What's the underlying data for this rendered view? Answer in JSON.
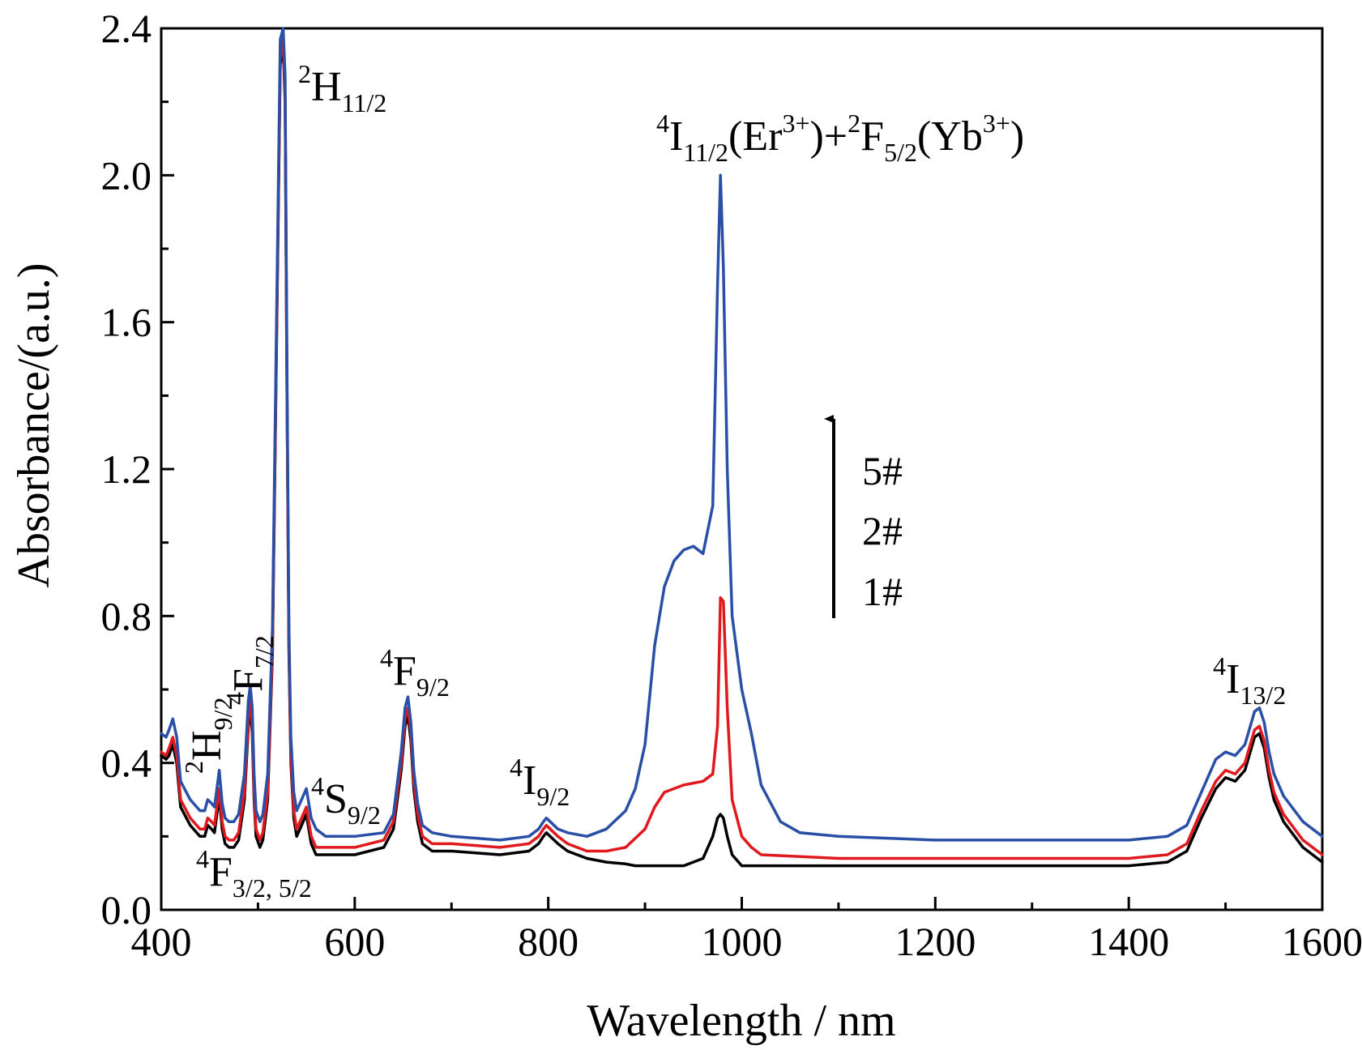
{
  "chart_data": {
    "type": "line",
    "xlabel": "Wavelength / nm",
    "ylabel": "Absorbance/(a.u.)",
    "xlim": [
      400,
      1600
    ],
    "ylim": [
      0.0,
      2.4
    ],
    "x_ticks": [
      {
        "value": 400,
        "label": "400"
      },
      {
        "value": 600,
        "label": "600"
      },
      {
        "value": 800,
        "label": "800"
      },
      {
        "value": 1000,
        "label": "1000"
      },
      {
        "value": 1200,
        "label": "1200"
      },
      {
        "value": 1400,
        "label": "1400"
      },
      {
        "value": 1600,
        "label": "1600"
      }
    ],
    "y_ticks": [
      {
        "value": 0.0,
        "label": "0.0"
      },
      {
        "value": 0.4,
        "label": "0.4"
      },
      {
        "value": 0.8,
        "label": "0.8"
      },
      {
        "value": 1.2,
        "label": "1.2"
      },
      {
        "value": 1.6,
        "label": "1.6"
      },
      {
        "value": 2.0,
        "label": "2.0"
      },
      {
        "value": 2.4,
        "label": "2.4"
      }
    ],
    "x_minor_step": 100,
    "y_minor_step": 0.2,
    "grid": false,
    "series": [
      {
        "name": "1#",
        "color": "#000000",
        "x": [
          400,
          405,
          408,
          412,
          416,
          420,
          430,
          440,
          445,
          448,
          452,
          455,
          458,
          460,
          463,
          466,
          470,
          475,
          480,
          486,
          490,
          492,
          494,
          496,
          498,
          502,
          505,
          510,
          515,
          520,
          523,
          526,
          528,
          530,
          532,
          534,
          537,
          540,
          545,
          550,
          555,
          560,
          570,
          600,
          630,
          640,
          648,
          652,
          655,
          658,
          661,
          665,
          670,
          680,
          700,
          750,
          780,
          790,
          795,
          798,
          802,
          810,
          820,
          840,
          860,
          880,
          890,
          900,
          920,
          940,
          960,
          970,
          975,
          978,
          981,
          985,
          990,
          1000,
          1020,
          1100,
          1200,
          1300,
          1400,
          1440,
          1460,
          1475,
          1490,
          1500,
          1510,
          1520,
          1530,
          1535,
          1540,
          1545,
          1550,
          1560,
          1580,
          1600
        ],
        "values": [
          0.42,
          0.41,
          0.42,
          0.45,
          0.4,
          0.28,
          0.23,
          0.2,
          0.2,
          0.23,
          0.22,
          0.21,
          0.27,
          0.31,
          0.22,
          0.18,
          0.17,
          0.17,
          0.19,
          0.3,
          0.5,
          0.55,
          0.48,
          0.3,
          0.2,
          0.17,
          0.19,
          0.3,
          0.7,
          1.7,
          2.3,
          2.35,
          2.2,
          1.4,
          0.7,
          0.4,
          0.25,
          0.2,
          0.23,
          0.26,
          0.18,
          0.15,
          0.15,
          0.15,
          0.17,
          0.22,
          0.38,
          0.5,
          0.53,
          0.46,
          0.33,
          0.24,
          0.18,
          0.16,
          0.16,
          0.15,
          0.16,
          0.18,
          0.2,
          0.21,
          0.2,
          0.18,
          0.16,
          0.14,
          0.13,
          0.125,
          0.12,
          0.12,
          0.12,
          0.12,
          0.14,
          0.2,
          0.25,
          0.26,
          0.25,
          0.2,
          0.15,
          0.12,
          0.12,
          0.12,
          0.12,
          0.12,
          0.12,
          0.13,
          0.16,
          0.25,
          0.33,
          0.36,
          0.35,
          0.38,
          0.47,
          0.48,
          0.44,
          0.36,
          0.3,
          0.24,
          0.17,
          0.13
        ]
      },
      {
        "name": "2#",
        "color": "#e0191e",
        "x": [
          400,
          405,
          408,
          412,
          416,
          420,
          430,
          440,
          445,
          448,
          452,
          455,
          458,
          460,
          463,
          466,
          470,
          475,
          480,
          486,
          490,
          492,
          494,
          496,
          498,
          502,
          505,
          510,
          515,
          520,
          523,
          526,
          528,
          530,
          532,
          534,
          537,
          540,
          545,
          550,
          555,
          560,
          570,
          600,
          630,
          640,
          648,
          652,
          655,
          658,
          661,
          665,
          670,
          680,
          700,
          750,
          780,
          790,
          795,
          798,
          802,
          810,
          820,
          840,
          860,
          880,
          900,
          910,
          920,
          940,
          960,
          970,
          975,
          978,
          981,
          985,
          990,
          1000,
          1010,
          1020,
          1100,
          1200,
          1300,
          1400,
          1440,
          1460,
          1475,
          1490,
          1500,
          1510,
          1520,
          1530,
          1535,
          1540,
          1545,
          1550,
          1560,
          1580,
          1600
        ],
        "values": [
          0.43,
          0.42,
          0.44,
          0.47,
          0.42,
          0.3,
          0.25,
          0.22,
          0.22,
          0.25,
          0.24,
          0.23,
          0.29,
          0.33,
          0.24,
          0.2,
          0.19,
          0.19,
          0.21,
          0.32,
          0.52,
          0.57,
          0.5,
          0.32,
          0.22,
          0.19,
          0.21,
          0.32,
          0.72,
          1.72,
          2.32,
          2.37,
          2.22,
          1.42,
          0.72,
          0.42,
          0.27,
          0.22,
          0.25,
          0.28,
          0.2,
          0.17,
          0.17,
          0.17,
          0.19,
          0.24,
          0.4,
          0.52,
          0.55,
          0.48,
          0.35,
          0.26,
          0.2,
          0.18,
          0.18,
          0.17,
          0.18,
          0.2,
          0.22,
          0.23,
          0.22,
          0.2,
          0.18,
          0.16,
          0.16,
          0.17,
          0.22,
          0.28,
          0.32,
          0.34,
          0.35,
          0.37,
          0.5,
          0.85,
          0.84,
          0.55,
          0.3,
          0.2,
          0.17,
          0.15,
          0.14,
          0.14,
          0.14,
          0.14,
          0.15,
          0.18,
          0.27,
          0.35,
          0.38,
          0.37,
          0.4,
          0.49,
          0.5,
          0.46,
          0.38,
          0.32,
          0.26,
          0.19,
          0.15
        ]
      },
      {
        "name": "5#",
        "color": "#2a4fa7",
        "x": [
          400,
          405,
          408,
          412,
          416,
          420,
          430,
          440,
          445,
          448,
          452,
          455,
          458,
          460,
          463,
          466,
          470,
          475,
          480,
          486,
          490,
          492,
          494,
          496,
          498,
          502,
          505,
          510,
          515,
          520,
          523,
          526,
          528,
          530,
          532,
          534,
          537,
          540,
          545,
          550,
          555,
          560,
          570,
          600,
          630,
          640,
          648,
          652,
          655,
          658,
          661,
          665,
          670,
          680,
          700,
          750,
          780,
          790,
          795,
          798,
          802,
          810,
          820,
          840,
          860,
          880,
          890,
          900,
          910,
          920,
          930,
          940,
          950,
          960,
          970,
          975,
          978,
          981,
          985,
          990,
          1000,
          1010,
          1020,
          1040,
          1060,
          1100,
          1200,
          1300,
          1400,
          1440,
          1460,
          1475,
          1490,
          1500,
          1510,
          1520,
          1530,
          1535,
          1540,
          1545,
          1550,
          1560,
          1580,
          1600
        ],
        "values": [
          0.48,
          0.47,
          0.49,
          0.52,
          0.47,
          0.35,
          0.3,
          0.27,
          0.27,
          0.3,
          0.29,
          0.28,
          0.34,
          0.38,
          0.29,
          0.25,
          0.24,
          0.24,
          0.26,
          0.37,
          0.57,
          0.61,
          0.55,
          0.37,
          0.27,
          0.24,
          0.26,
          0.37,
          0.77,
          1.77,
          2.37,
          2.4,
          2.27,
          1.47,
          0.77,
          0.47,
          0.32,
          0.27,
          0.3,
          0.33,
          0.25,
          0.22,
          0.2,
          0.2,
          0.21,
          0.26,
          0.43,
          0.55,
          0.58,
          0.51,
          0.38,
          0.29,
          0.23,
          0.21,
          0.2,
          0.19,
          0.2,
          0.22,
          0.24,
          0.25,
          0.24,
          0.22,
          0.21,
          0.2,
          0.22,
          0.27,
          0.33,
          0.45,
          0.72,
          0.88,
          0.95,
          0.98,
          0.99,
          0.97,
          1.1,
          1.7,
          2.0,
          1.75,
          1.2,
          0.8,
          0.6,
          0.48,
          0.34,
          0.24,
          0.21,
          0.2,
          0.19,
          0.19,
          0.19,
          0.2,
          0.23,
          0.32,
          0.41,
          0.43,
          0.42,
          0.45,
          0.54,
          0.55,
          0.51,
          0.43,
          0.37,
          0.31,
          0.24,
          0.2
        ]
      }
    ],
    "annotations": [
      {
        "name": "2H11/2",
        "sup": "2",
        "base": "H",
        "sub": "11/2"
      },
      {
        "name": "4F7/2",
        "sup": "4",
        "base": "F",
        "sub": "7/2"
      },
      {
        "name": "2H9/2",
        "sup": "2",
        "base": "H",
        "sub": "9/2"
      },
      {
        "name": "4S9/2",
        "sup": "4",
        "base": "S",
        "sub": "9/2"
      },
      {
        "name": "4F3/2,5/2",
        "sup": "4",
        "base": "F",
        "sub": "3/2, 5/2"
      },
      {
        "name": "4F9/2",
        "sup": "4",
        "base": "F",
        "sub": "9/2"
      },
      {
        "name": "4I9/2",
        "sup": "4",
        "base": "I",
        "sub": "9/2"
      },
      {
        "name": "4I13/2",
        "sup": "4",
        "base": "I",
        "sub": "13/2"
      },
      {
        "name": "4I11/2(Er3+)+2F5/2(Yb3+)",
        "sup": "4",
        "base": "I",
        "sub": "11/2",
        "mid1": "(Er",
        "sup2": "3+",
        "mid2": ")+",
        "sup3": "2",
        "base2": "F",
        "sub2": "5/2",
        "mid3": "(Yb",
        "sup4": "3+",
        "end": ")"
      }
    ],
    "legend": {
      "order_top_to_bottom": [
        "5#",
        "2#",
        "1#"
      ],
      "arrow_direction": "up",
      "placement": "right-middle"
    }
  }
}
